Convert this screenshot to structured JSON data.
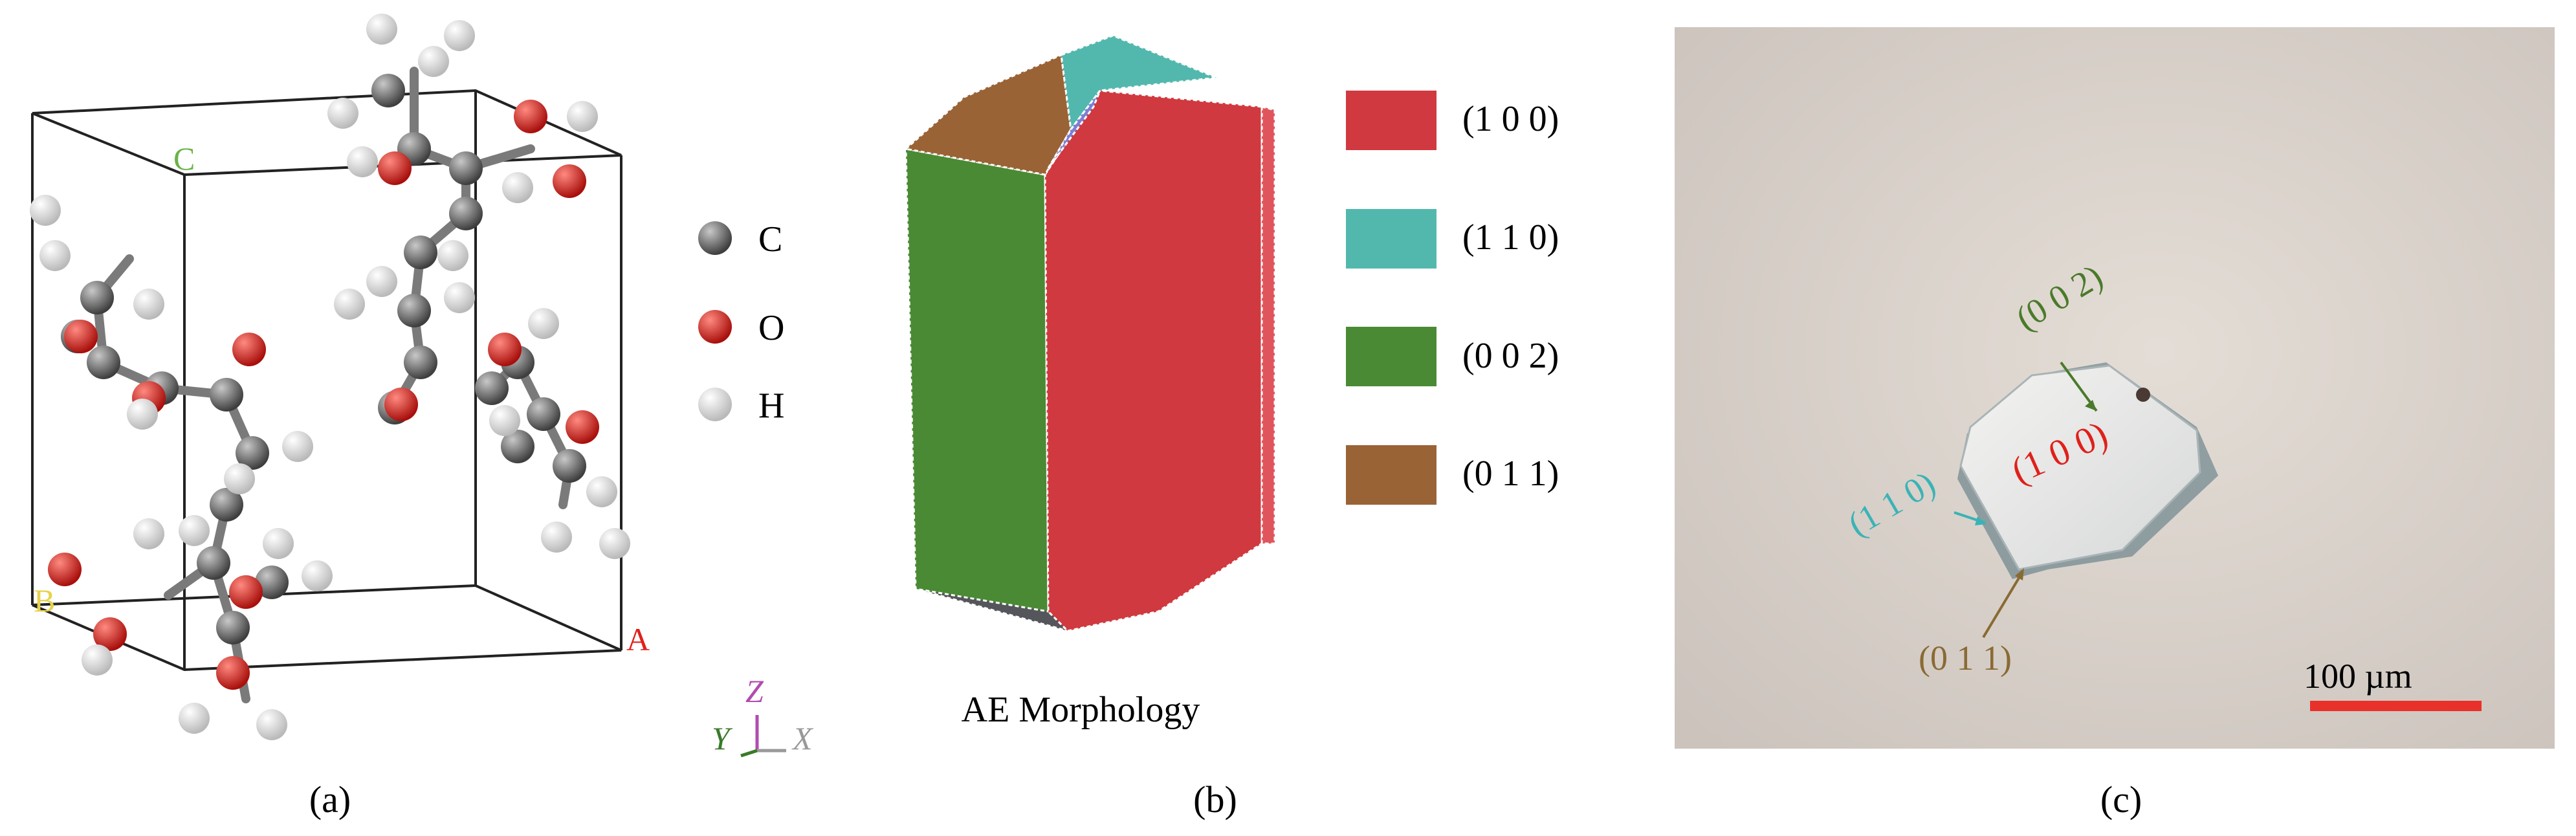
{
  "panel_a": {
    "caption": "(a)",
    "axis_labels": {
      "c": "C",
      "b": "B",
      "a": "A"
    },
    "legend": [
      {
        "element": "C",
        "color": "#6e6e6e"
      },
      {
        "element": "O",
        "color": "#e0201b"
      },
      {
        "element": "H",
        "color": "#f2f2f2"
      }
    ],
    "triad": {
      "z": "Z",
      "y": "Y",
      "x": "X"
    }
  },
  "panel_b": {
    "caption": "(b)",
    "title": "AE Morphology",
    "legend": [
      {
        "label": "(1 0 0)",
        "color": "#d0393f"
      },
      {
        "label": "(1 1 0)",
        "color": "#52b8ad"
      },
      {
        "label": "(0 0 2)",
        "color": "#4a8a34"
      },
      {
        "label": "(0 1 1)",
        "color": "#9a6336"
      }
    ]
  },
  "panel_c": {
    "caption": "(c)",
    "face_labels": {
      "f002": "(0 0 2)",
      "f100": "(1 0 0)",
      "f110": "(1 1 0)",
      "f011": "(0 1 1)"
    },
    "scale_bar": {
      "label": "100 µm",
      "color": "#e8312a"
    }
  }
}
